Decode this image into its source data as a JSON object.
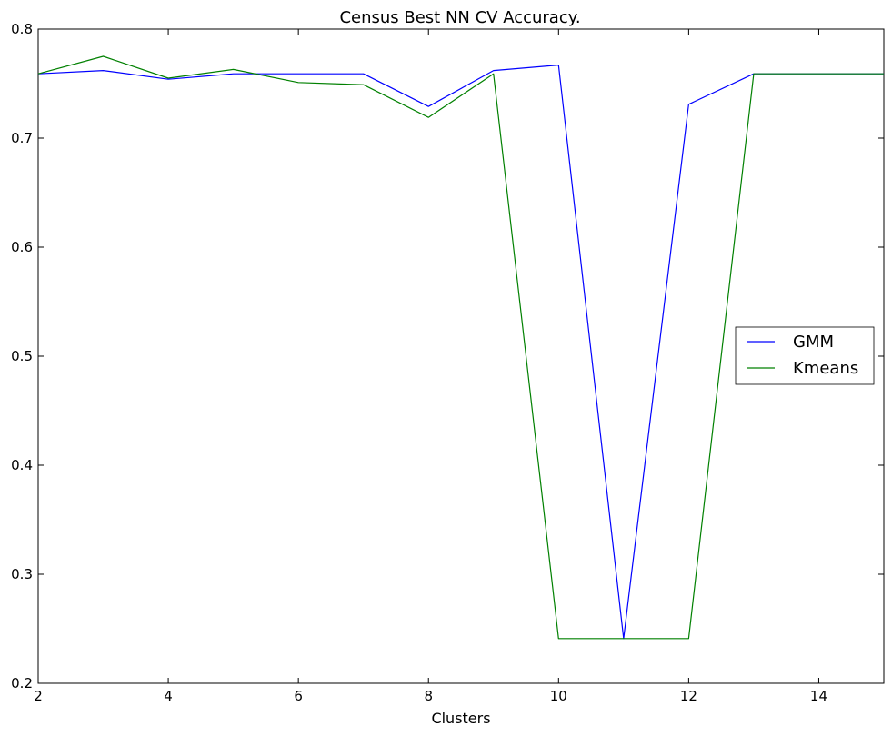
{
  "chart_data": {
    "type": "line",
    "title": "Census Best NN CV Accuracy.",
    "xlabel": "Clusters",
    "ylabel": "",
    "xlim": [
      2,
      15
    ],
    "ylim": [
      0.2,
      0.8
    ],
    "x_ticks": [
      2,
      4,
      6,
      8,
      10,
      12,
      14
    ],
    "y_ticks": [
      0.2,
      0.3,
      0.4,
      0.5,
      0.6,
      0.7,
      0.8
    ],
    "x_tick_labels": [
      "2",
      "4",
      "6",
      "8",
      "10",
      "12",
      "14"
    ],
    "y_tick_labels": [
      "0.2",
      "0.3",
      "0.4",
      "0.5",
      "0.6",
      "0.7",
      "0.8"
    ],
    "grid": false,
    "legend_position": "right",
    "x": [
      2,
      3,
      4,
      5,
      6,
      7,
      8,
      9,
      10,
      11,
      12,
      13,
      14,
      15
    ],
    "series": [
      {
        "name": "GMM",
        "color": "#0000ff",
        "values": [
          0.759,
          0.762,
          0.754,
          0.759,
          0.759,
          0.759,
          0.729,
          0.762,
          0.767,
          0.241,
          0.731,
          0.759,
          0.759,
          0.759
        ]
      },
      {
        "name": "Kmeans",
        "color": "#008000",
        "values": [
          0.759,
          0.775,
          0.755,
          0.763,
          0.751,
          0.749,
          0.719,
          0.759,
          0.241,
          0.241,
          0.241,
          0.759,
          0.759,
          0.759
        ]
      }
    ]
  }
}
